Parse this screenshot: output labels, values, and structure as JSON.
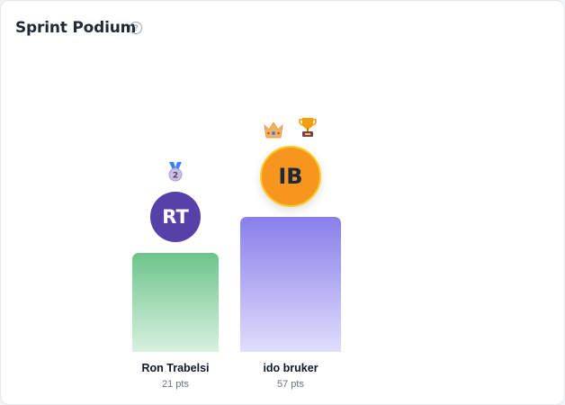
{
  "header": {
    "title": "Sprint Podium",
    "help_icon": "question-circle-icon"
  },
  "podium": [
    {
      "rank": 2,
      "initials": "RT",
      "name": "Ron Trabelsi",
      "points": "21 pts",
      "avatar_color": "#5541a8",
      "bar_color": "#6cc58a",
      "badge_icons": [
        "second-place-medal-icon"
      ]
    },
    {
      "rank": 1,
      "initials": "IB",
      "name": "ido bruker",
      "points": "57 pts",
      "avatar_color": "#f7961e",
      "bar_color": "#887fea",
      "badge_icons": [
        "crown-icon",
        "trophy-icon"
      ]
    }
  ]
}
